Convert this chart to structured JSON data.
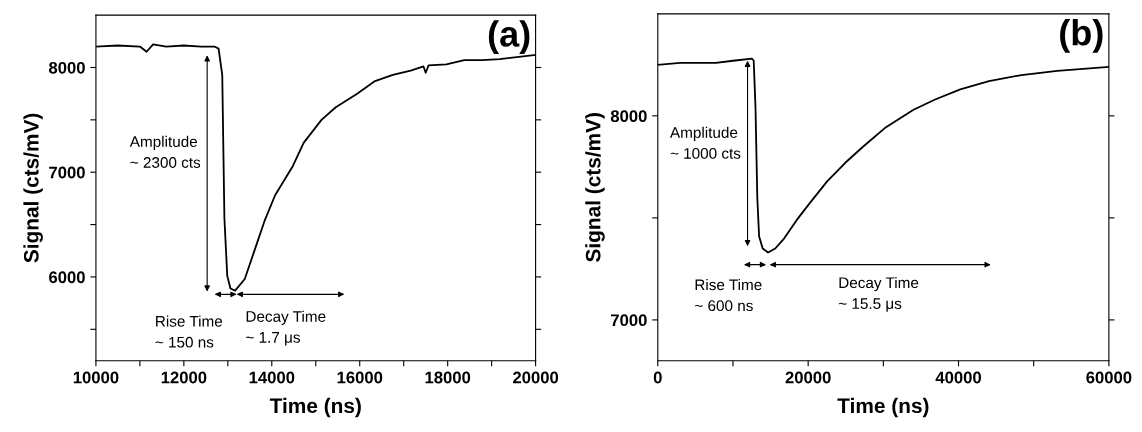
{
  "chart_data": [
    {
      "type": "line",
      "title": "(a)",
      "xlabel": "Time (ns)",
      "ylabel": "Signal (cts/mV)",
      "annotations": [
        "Amplitude\n~ 2300 cts",
        "Rise Time\n~ 150 ns",
        "Decay Time\n~ 1.7 μs"
      ],
      "series": [
        {
          "color": "#000000",
          "x": [
            10000,
            10500,
            11000,
            11153,
            11300,
            11600,
            12000,
            12400,
            12695,
            12790,
            12873,
            12922,
            12987,
            13060,
            13166,
            13385,
            13588,
            13831,
            14075,
            14480,
            14724,
            15130,
            15455,
            15942,
            16347,
            16753,
            17159,
            17450,
            17500,
            17565,
            17971,
            18377,
            18782,
            19188,
            20000
          ],
          "values": [
            8200,
            8210,
            8200,
            8150,
            8220,
            8200,
            8210,
            8200,
            8200,
            8180,
            7930,
            6560,
            6010,
            5890,
            5870,
            5980,
            6230,
            6530,
            6780,
            7060,
            7280,
            7500,
            7620,
            7750,
            7870,
            7930,
            7970,
            8010,
            7950,
            8020,
            8030,
            8070,
            8070,
            8080,
            8120
          ]
        }
      ],
      "xlim": [
        10000,
        20000
      ],
      "ylim": [
        5200,
        8500
      ],
      "xticks": [
        10000,
        {
          "value": 11000,
          "label": null
        },
        12000,
        {
          "value": 13000,
          "label": null
        },
        14000,
        {
          "value": 15000,
          "label": null
        },
        16000,
        {
          "value": 17000,
          "label": null
        },
        18000,
        {
          "value": 19000,
          "label": null
        },
        20000
      ],
      "yticks": [
        {
          "value": 5500,
          "label": null
        },
        6000,
        {
          "value": 6500,
          "label": null
        },
        7000,
        {
          "value": 7500,
          "label": null
        },
        8000
      ],
      "grid": false,
      "legend": false,
      "marker": "none",
      "line_style": "solid"
    },
    {
      "type": "line",
      "title": "(b)",
      "xlabel": "Time (ns)",
      "ylabel": "Signal (cts/mV)",
      "annotations": [
        "Amplitude\n~ 1000 cts",
        "Rise Time\n~ 600 ns",
        "Decay Time\n~ 15.5 μs"
      ],
      "series": [
        {
          "color": "#000000",
          "x": [
            0,
            3000,
            7740,
            10000,
            12518,
            12757,
            12996,
            13235,
            13474,
            13951,
            14668,
            15623,
            16818,
            18490,
            20162,
            22551,
            24940,
            27329,
            30196,
            34018,
            36885,
            40229,
            44051,
            48351,
            53129,
            60000
          ],
          "values": [
            8250,
            8260,
            8260,
            8270,
            8280,
            8270,
            8040,
            7600,
            7410,
            7350,
            7330,
            7350,
            7400,
            7490,
            7570,
            7680,
            7770,
            7850,
            7940,
            8030,
            8080,
            8130,
            8170,
            8200,
            8220,
            8240
          ]
        }
      ],
      "xlim": [
        0,
        60000
      ],
      "ylim": [
        6800,
        8500
      ],
      "xticks": [
        0,
        {
          "value": 10000,
          "label": null
        },
        20000,
        {
          "value": 30000,
          "label": null
        },
        40000,
        {
          "value": 50000,
          "label": null
        },
        60000
      ],
      "yticks": [
        7000,
        {
          "value": 7500,
          "label": null
        },
        8000
      ],
      "grid": false,
      "legend": false,
      "marker": "none",
      "line_style": "solid"
    }
  ]
}
